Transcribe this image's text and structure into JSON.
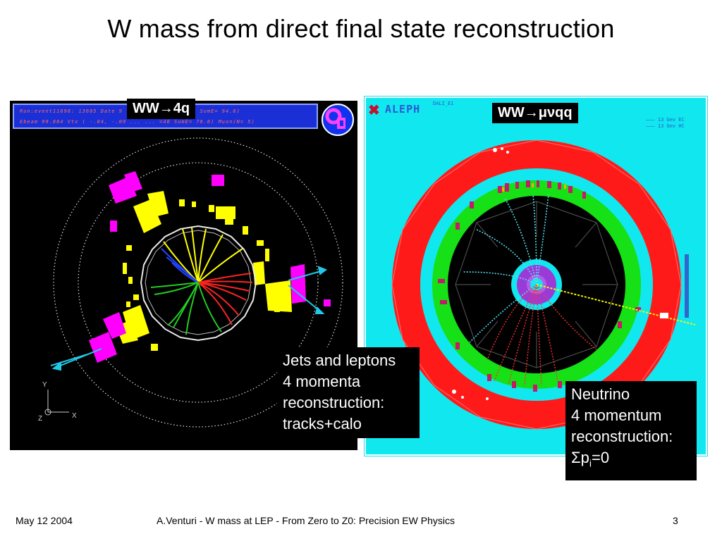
{
  "slide": {
    "title": "W mass from direct final state reconstruction",
    "footer_date": "May 12 2004",
    "footer_text": "A.Venturi - W mass at LEP - From Zero to Z0: Precision EW Physics",
    "page_number": "3"
  },
  "left_display": {
    "label": "WW→4q",
    "header_line1": "Run:event11698: 13605      Date 9 ... 0.1) Ecal(N= 76 SumE= 94.6)",
    "header_line2": "Ebeam 99.804 Vtx ( -.04,  -.09 ...   ... =40 SumE= 78.6) Muon(N= 5)",
    "logo_text": "OPAL",
    "axis_y": "Y",
    "axis_x": "X",
    "axis_z": "Z",
    "note_line1": "Jets and leptons",
    "note_line2": "4 momenta",
    "note_line3": "reconstruction:",
    "note_line4": "tracks+calo"
  },
  "right_display": {
    "label": "WW→μνqq",
    "logo_text": "ALEPH",
    "dali_text": "DALI_E1",
    "legend_line1": "——— 13 Gev EC",
    "legend_line2": "——— 13 Gev HC",
    "note_line1": "Neutrino",
    "note_line2": "4 momentum",
    "note_line3": "reconstruction:",
    "note_sigma": "Σ",
    "note_p": "p",
    "note_i": "i",
    "note_eq": "=0"
  },
  "colors": {
    "opal_background": "#000000",
    "aleph_background": "#11e7ef",
    "hcal_red": "#ff1a1a",
    "ecal_green": "#16e016",
    "calo_yellow": "#ffff00",
    "muon_magenta": "#ff00ff"
  }
}
